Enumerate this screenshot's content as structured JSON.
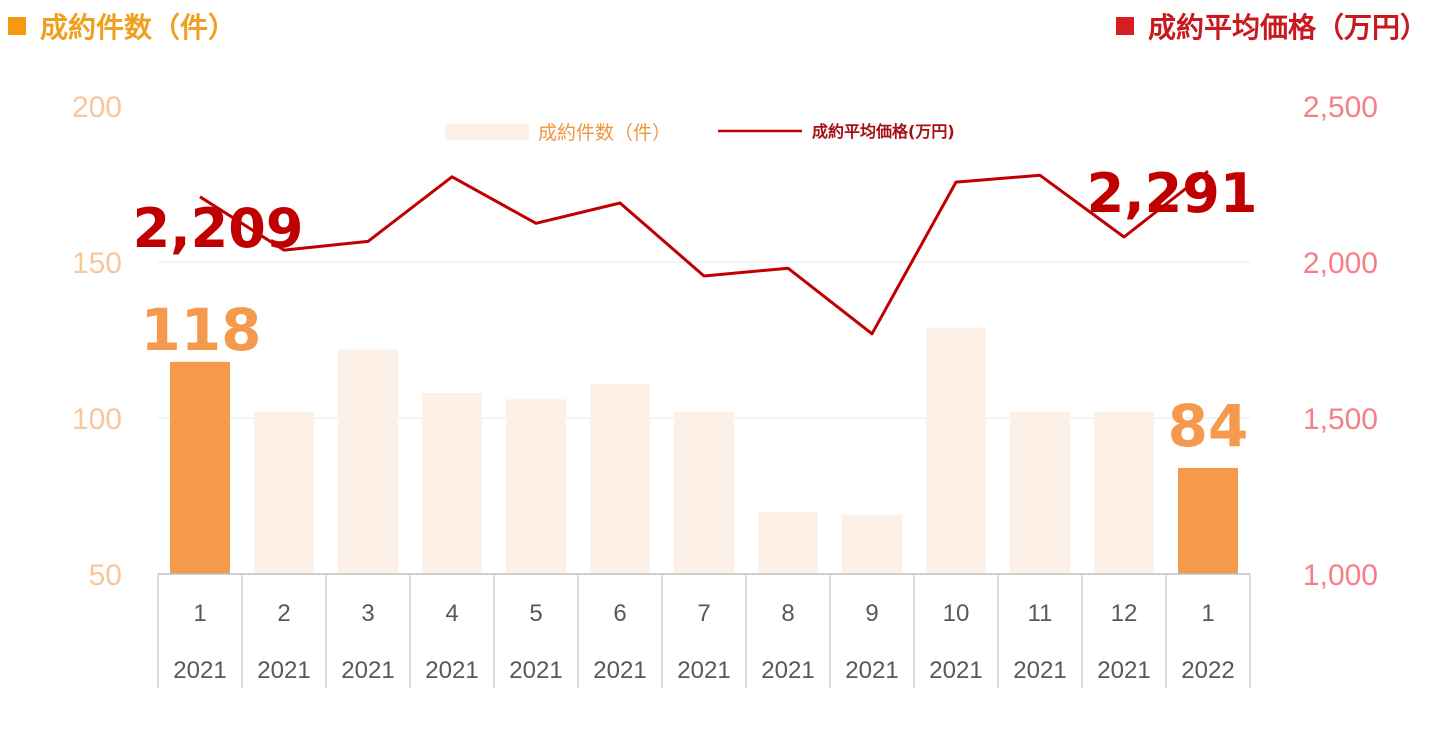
{
  "header": {
    "left_title": "成約件数（件）",
    "right_title": "成約平均価格（万円）"
  },
  "colors": {
    "bar_highlight": "#f59a4c",
    "bar_faded": "#fdf0e6",
    "line": "#c00000",
    "left_axis": "#f7c79c",
    "right_axis": "#f4808a",
    "left_title": "#f0a020",
    "right_title": "#c8191e"
  },
  "chart_data": {
    "type": "bar",
    "categories": [
      [
        "1",
        "2021"
      ],
      [
        "2",
        "2021"
      ],
      [
        "3",
        "2021"
      ],
      [
        "4",
        "2021"
      ],
      [
        "5",
        "2021"
      ],
      [
        "6",
        "2021"
      ],
      [
        "7",
        "2021"
      ],
      [
        "8",
        "2021"
      ],
      [
        "9",
        "2021"
      ],
      [
        "10",
        "2021"
      ],
      [
        "11",
        "2021"
      ],
      [
        "12",
        "2021"
      ],
      [
        "1",
        "2022"
      ]
    ],
    "series": [
      {
        "name": "成約件数（件）",
        "type": "bar",
        "axis": "left",
        "values": [
          118,
          102,
          122,
          108,
          106,
          111,
          102,
          70,
          69,
          129,
          102,
          102,
          84
        ],
        "highlight_indices": [
          0,
          12
        ]
      },
      {
        "name": "成約平均価格(万円)",
        "type": "line",
        "axis": "right",
        "values": [
          2209,
          2038,
          2066,
          2273,
          2124,
          2189,
          1955,
          1980,
          1770,
          2256,
          2278,
          2080,
          2291
        ]
      }
    ],
    "left_axis": {
      "ylim": [
        50,
        200
      ],
      "ticks": [
        "50",
        "100",
        "150",
        "200"
      ]
    },
    "right_axis": {
      "ylim": [
        1000,
        2500
      ],
      "ticks": [
        "1,000",
        "1,500",
        "2,000",
        "2,500"
      ]
    },
    "annotations": {
      "bar_first": "118",
      "bar_last": "84",
      "line_first": "2,209",
      "line_last": "2,291"
    },
    "legend": "top-center",
    "grid": true
  }
}
